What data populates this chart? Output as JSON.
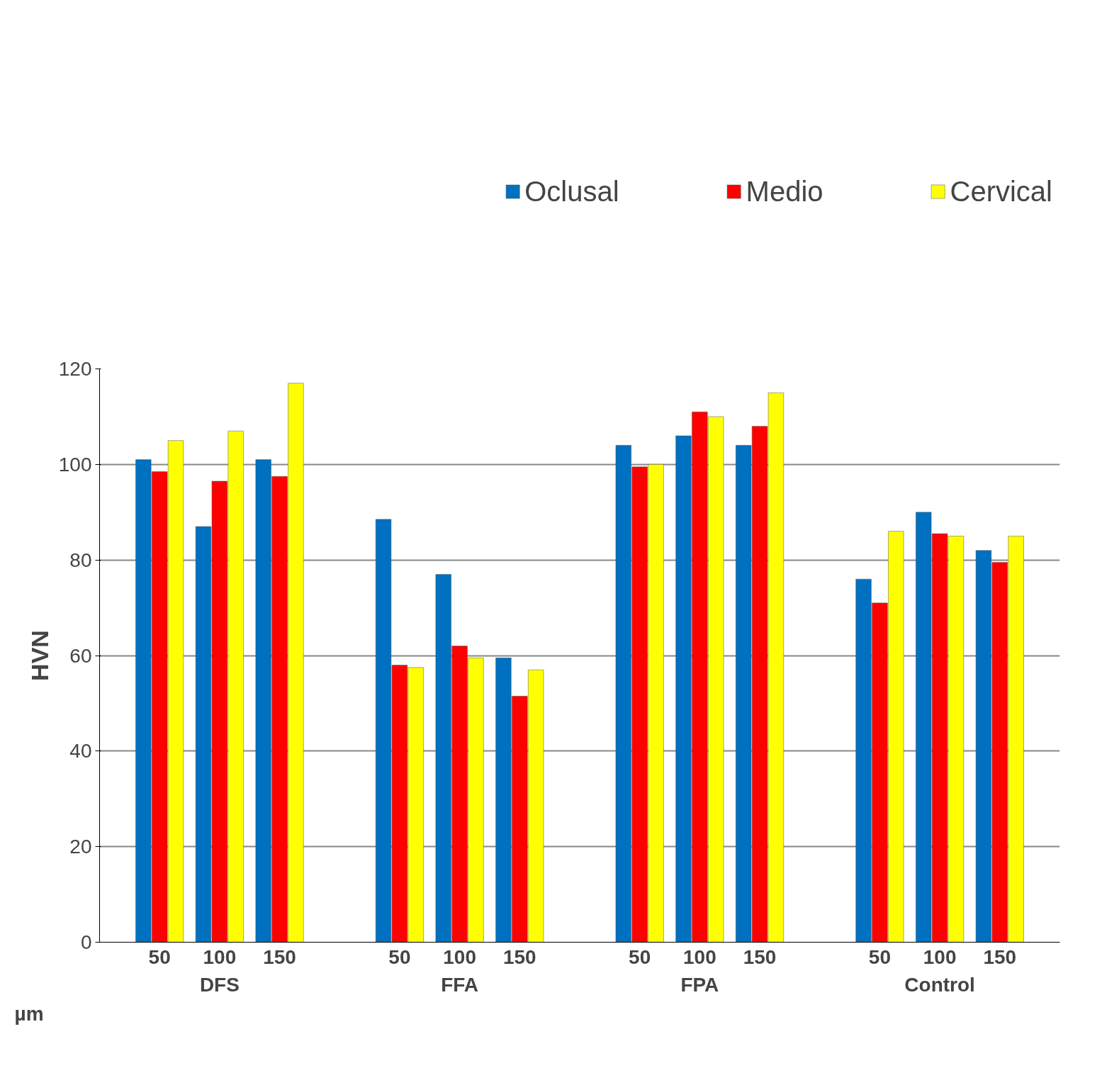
{
  "chart_data": {
    "type": "bar",
    "ylabel": "HVN",
    "xlabel": "µm",
    "categories": [
      "50",
      "100",
      "150",
      "50",
      "100",
      "150",
      "50",
      "100",
      "150",
      "50",
      "100",
      "150"
    ],
    "annotations": [
      "DFS",
      "FFA",
      "FPA",
      "Control"
    ],
    "series": [
      {
        "name": "Oclusal",
        "color": "#0070c0",
        "values": [
          101,
          87,
          101,
          88.5,
          77,
          59.5,
          104,
          106,
          104,
          76,
          90,
          82
        ]
      },
      {
        "name": "Medio",
        "color": "#ff0000",
        "values": [
          98.5,
          96.5,
          97.5,
          58,
          62,
          51.5,
          99.5,
          111,
          108,
          71,
          85.5,
          79.5
        ]
      },
      {
        "name": "Cervical",
        "color": "#ffff00",
        "values": [
          105,
          107,
          117,
          57.5,
          59.5,
          57,
          100,
          110,
          115,
          86,
          85,
          85
        ]
      }
    ],
    "ylim": [
      0,
      120
    ],
    "yticks": [
      0,
      20,
      40,
      60,
      80,
      100,
      120
    ],
    "grid": "y",
    "legend": "top"
  }
}
